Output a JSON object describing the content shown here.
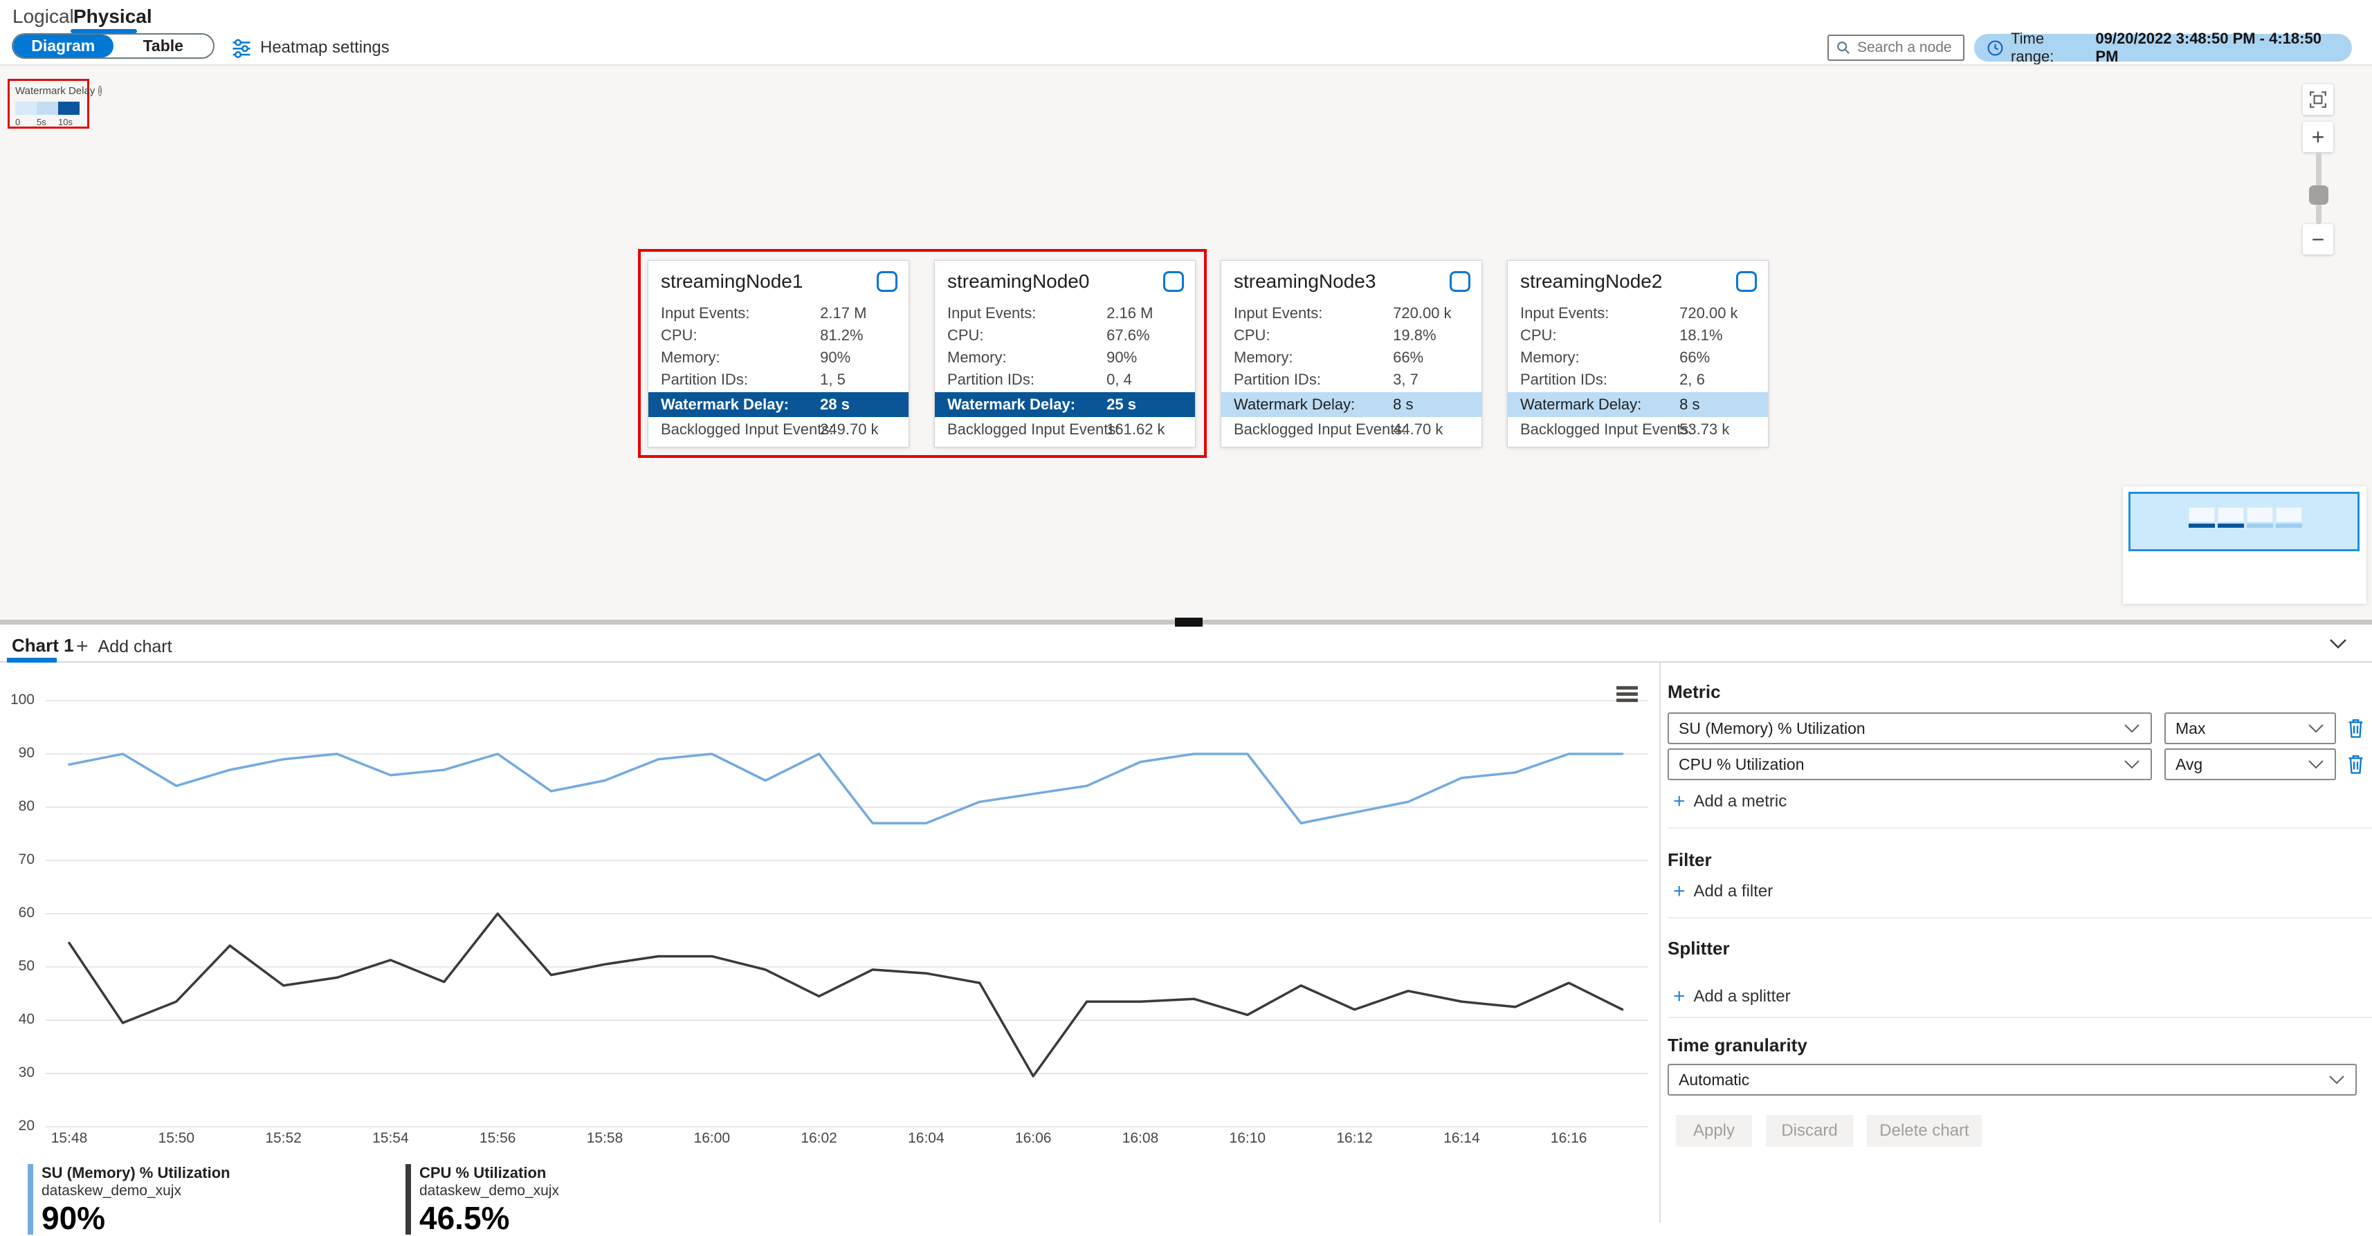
{
  "header": {
    "tabs": {
      "logical": "Logical",
      "physical": "Physical"
    },
    "view_toggle": {
      "diagram": "Diagram",
      "table": "Table"
    },
    "heatmap_settings": "Heatmap settings",
    "search_placeholder": "Search a node",
    "time_range": {
      "prefix": "Time range:",
      "value": "09/20/2022 3:48:50 PM - 4:18:50 PM"
    }
  },
  "watermark_legend": {
    "title": "Watermark Delay",
    "stops": [
      {
        "label": "0",
        "color": "#d8eafa"
      },
      {
        "label": "5s",
        "color": "#c3def2"
      },
      {
        "label": "10s",
        "color": "#0a559d"
      }
    ]
  },
  "node_labels": {
    "input_events": "Input Events:",
    "cpu": "CPU:",
    "memory": "Memory:",
    "partition_ids": "Partition IDs:",
    "watermark_delay": "Watermark Delay:",
    "backlogged": "Backlogged Input Events:"
  },
  "nodes": [
    {
      "title": "streamingNode1",
      "input_events": "2.17 M",
      "cpu": "81.2%",
      "memory": "90%",
      "partition_ids": "1, 5",
      "watermark_delay": "28 s",
      "backlogged": "249.70 k",
      "highlight": "dark",
      "selected_by_red_box": true
    },
    {
      "title": "streamingNode0",
      "input_events": "2.16 M",
      "cpu": "67.6%",
      "memory": "90%",
      "partition_ids": "0, 4",
      "watermark_delay": "25 s",
      "backlogged": "161.62 k",
      "highlight": "dark",
      "selected_by_red_box": true
    },
    {
      "title": "streamingNode3",
      "input_events": "720.00 k",
      "cpu": "19.8%",
      "memory": "66%",
      "partition_ids": "3, 7",
      "watermark_delay": "8 s",
      "backlogged": "44.70 k",
      "highlight": "light",
      "selected_by_red_box": false
    },
    {
      "title": "streamingNode2",
      "input_events": "720.00 k",
      "cpu": "18.1%",
      "memory": "66%",
      "partition_ids": "2, 6",
      "watermark_delay": "8 s",
      "backlogged": "53.73 k",
      "highlight": "light",
      "selected_by_red_box": false
    }
  ],
  "chart_tabs": {
    "active": "Chart 1",
    "add": "Add chart"
  },
  "chart_data": {
    "type": "line",
    "x": [
      "15:48",
      "15:49",
      "15:50",
      "15:51",
      "15:52",
      "15:53",
      "15:54",
      "15:55",
      "15:56",
      "15:57",
      "15:58",
      "15:59",
      "16:00",
      "16:01",
      "16:02",
      "16:03",
      "16:04",
      "16:05",
      "16:06",
      "16:07",
      "16:08",
      "16:09",
      "16:10",
      "16:11",
      "16:12",
      "16:13",
      "16:14",
      "16:15",
      "16:16",
      "16:17"
    ],
    "x_tick_labels": [
      "15:48",
      "15:50",
      "15:52",
      "15:54",
      "15:56",
      "15:58",
      "16:00",
      "16:02",
      "16:04",
      "16:06",
      "16:08",
      "16:10",
      "16:12",
      "16:14",
      "16:16"
    ],
    "ylim": [
      20,
      100
    ],
    "yticks": [
      100,
      90,
      80,
      70,
      60,
      50,
      40,
      30,
      20
    ],
    "grid": true,
    "series": [
      {
        "name": "SU (Memory) % Utilization",
        "color": "#74aadf",
        "values": [
          88,
          90,
          84,
          87,
          89,
          90,
          86,
          87,
          90,
          83,
          85,
          89,
          90,
          85,
          90,
          77,
          77,
          81,
          82.5,
          84,
          88.5,
          90,
          90,
          77,
          79,
          81,
          85.5,
          86.5,
          90,
          90
        ]
      },
      {
        "name": "CPU % Utilization",
        "color": "#3b3a39",
        "values": [
          54.5,
          39.5,
          43.5,
          54,
          46.5,
          48,
          51.3,
          47.2,
          60,
          48.5,
          50.5,
          52,
          52,
          49.5,
          44.5,
          49.5,
          48.8,
          47,
          29.5,
          43.5,
          43.5,
          44,
          41,
          46.5,
          42,
          45.5,
          43.5,
          42.5,
          47,
          42
        ]
      }
    ],
    "legend_position": "bottom-left"
  },
  "bottom_legend": [
    {
      "name": "SU (Memory) % Utilization",
      "sub": "dataskew_demo_xujx",
      "value": "90%",
      "color": "#74aadf"
    },
    {
      "name": "CPU % Utilization",
      "sub": "dataskew_demo_xujx",
      "value": "46.5%",
      "color": "#3b3a39"
    }
  ],
  "settings": {
    "metric_heading": "Metric",
    "metric_rows": [
      {
        "metric": "SU (Memory) % Utilization",
        "aggregation": "Max"
      },
      {
        "metric": "CPU % Utilization",
        "aggregation": "Avg"
      }
    ],
    "add_metric": "Add a metric",
    "filter_heading": "Filter",
    "add_filter": "Add a filter",
    "splitter_heading": "Splitter",
    "add_splitter": "Add a splitter",
    "granularity_heading": "Time granularity",
    "granularity_value": "Automatic",
    "buttons": {
      "apply": "Apply",
      "discard": "Discard",
      "delete": "Delete chart"
    }
  },
  "icons": {
    "search": "magnifier",
    "clock": "clock-outline",
    "sliders": "heatmap-settings-sliders",
    "info": "info-circle",
    "fit": "fit-to-screen",
    "zoom_in": "plus",
    "zoom_out": "minus",
    "chevron_down": "chevron-down",
    "trash": "trash-can",
    "menu": "hamburger"
  },
  "colors": {
    "accent": "#0078d4",
    "red_box": "#e60000",
    "dark_band": "#0a5596",
    "light_band": "#bcdcf5",
    "canvas_bg": "#f7f6f5",
    "line_blue": "#74aadf",
    "line_black": "#3b3a39",
    "time_pill_bg": "#abd3f2"
  }
}
